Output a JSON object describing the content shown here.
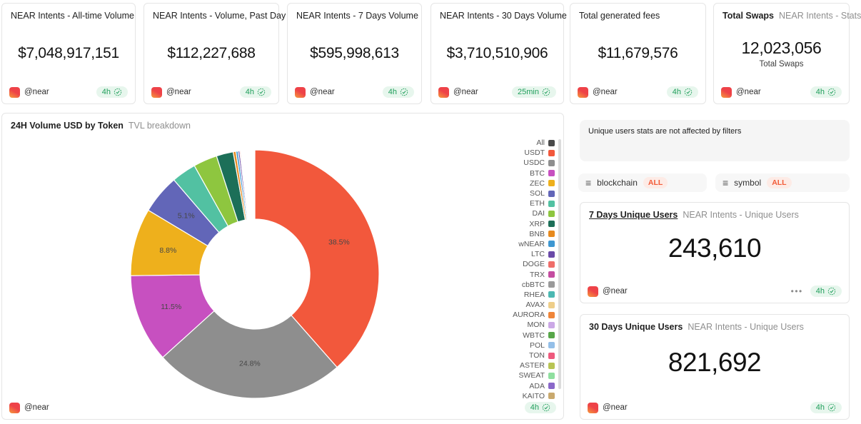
{
  "stat_cards": [
    {
      "title": "NEAR Intents - All-time Volume",
      "value": "$7,048,917,151",
      "author": "@near",
      "refresh": "4h"
    },
    {
      "title": "NEAR Intents - Volume, Past Day",
      "value": "$112,227,688",
      "author": "@near",
      "refresh": "4h"
    },
    {
      "title": "NEAR Intents - 7 Days Volume",
      "value": "$595,998,613",
      "author": "@near",
      "refresh": "4h"
    },
    {
      "title": "NEAR Intents - 30 Days Volume",
      "value": "$3,710,510,906",
      "author": "@near",
      "refresh": "25min"
    },
    {
      "title": "Total generated fees",
      "value": "$11,679,576",
      "author": "@near",
      "refresh": "4h"
    },
    {
      "title": "Total Swaps",
      "subtitle": "NEAR Intents - Stats",
      "value": "12,023,056",
      "caption": "Total Swaps",
      "author": "@near",
      "refresh": "4h"
    }
  ],
  "chart_card": {
    "title": "24H Volume USD by Token",
    "subtitle": "TVL breakdown",
    "author": "@near",
    "refresh": "4h"
  },
  "chart_data": {
    "type": "pie",
    "donut": true,
    "title": "24H Volume USD by Token (TVL breakdown)",
    "unit": "%",
    "legend_position": "right",
    "legend_scrollable": true,
    "legend_all": {
      "label": "All",
      "color": "#4a4a4a"
    },
    "slices": [
      {
        "label": "USDT",
        "value": 38.5,
        "display": "38.5%",
        "color": "#f2583c"
      },
      {
        "label": "USDC",
        "value": 24.8,
        "display": "24.8%",
        "color": "#8e8e8e"
      },
      {
        "label": "BTC",
        "value": 11.5,
        "display": "11.5%",
        "color": "#c750c0"
      },
      {
        "label": "ZEC",
        "value": 8.8,
        "display": "8.8%",
        "color": "#eeb01c"
      },
      {
        "label": "SOL",
        "value": 5.1,
        "display": "5.1%",
        "color": "#6266b8"
      },
      {
        "label": "ETH",
        "value": 3.2,
        "color": "#52c1a2"
      },
      {
        "label": "DAI",
        "value": 3.1,
        "color": "#8ec63f"
      },
      {
        "label": "XRP",
        "value": 2.2,
        "color": "#1c6f58"
      },
      {
        "label": "BNB",
        "value": 0.35,
        "color": "#e78a1e"
      },
      {
        "label": "wNEAR",
        "value": 0.28,
        "color": "#3e97d1"
      },
      {
        "label": "LTC",
        "value": 0.22,
        "color": "#6a4aa8"
      },
      {
        "label": "DOGE",
        "value": 0.13,
        "color": "#ef6e6a"
      },
      {
        "label": "TRX",
        "value": 0.1,
        "color": "#c44da0"
      },
      {
        "label": "cbBTC",
        "value": 0.09,
        "color": "#9a9a9a"
      },
      {
        "label": "RHEA",
        "value": 0.08,
        "color": "#4cb8b2"
      },
      {
        "label": "AVAX",
        "value": 0.07,
        "color": "#eece8a"
      },
      {
        "label": "AURORA",
        "value": 0.06,
        "color": "#ef8539"
      },
      {
        "label": "MON",
        "value": 0.05,
        "color": "#cba8e6"
      },
      {
        "label": "WBTC",
        "value": 0.05,
        "color": "#57a649"
      },
      {
        "label": "POL",
        "value": 0.04,
        "color": "#94bfe8"
      },
      {
        "label": "TON",
        "value": 0.04,
        "color": "#ee5a7d"
      },
      {
        "label": "ASTER",
        "value": 0.03,
        "color": "#b8c454"
      },
      {
        "label": "SWEAT",
        "value": 0.03,
        "color": "#8fdf9f"
      },
      {
        "label": "ADA",
        "value": 0.03,
        "color": "#8a68c9"
      },
      {
        "label": "KAITO",
        "value": 0.02,
        "color": "#c9a96e"
      }
    ]
  },
  "right_panel": {
    "note": "Unique users stats are not affected by filters",
    "filters": [
      {
        "label": "blockchain",
        "value": "ALL"
      },
      {
        "label": "symbol",
        "value": "ALL"
      }
    ],
    "cards": [
      {
        "title": "7 Days Unique Users",
        "subtitle": "NEAR Intents - Unique Users",
        "value": "243,610",
        "author": "@near",
        "refresh": "4h"
      },
      {
        "title": "30 Days Unique Users",
        "subtitle": "NEAR Intents - Unique Users",
        "value": "821,692",
        "author": "@near",
        "refresh": "4h"
      }
    ]
  },
  "colors": {
    "badge_bg": "#e7f6ed",
    "badge_text": "#1e9e5a",
    "filter_all_text": "#f25b38",
    "card_border": "#e5e5e5",
    "avatar_gradient": [
      "#ee4248",
      "#f7a43b"
    ]
  }
}
